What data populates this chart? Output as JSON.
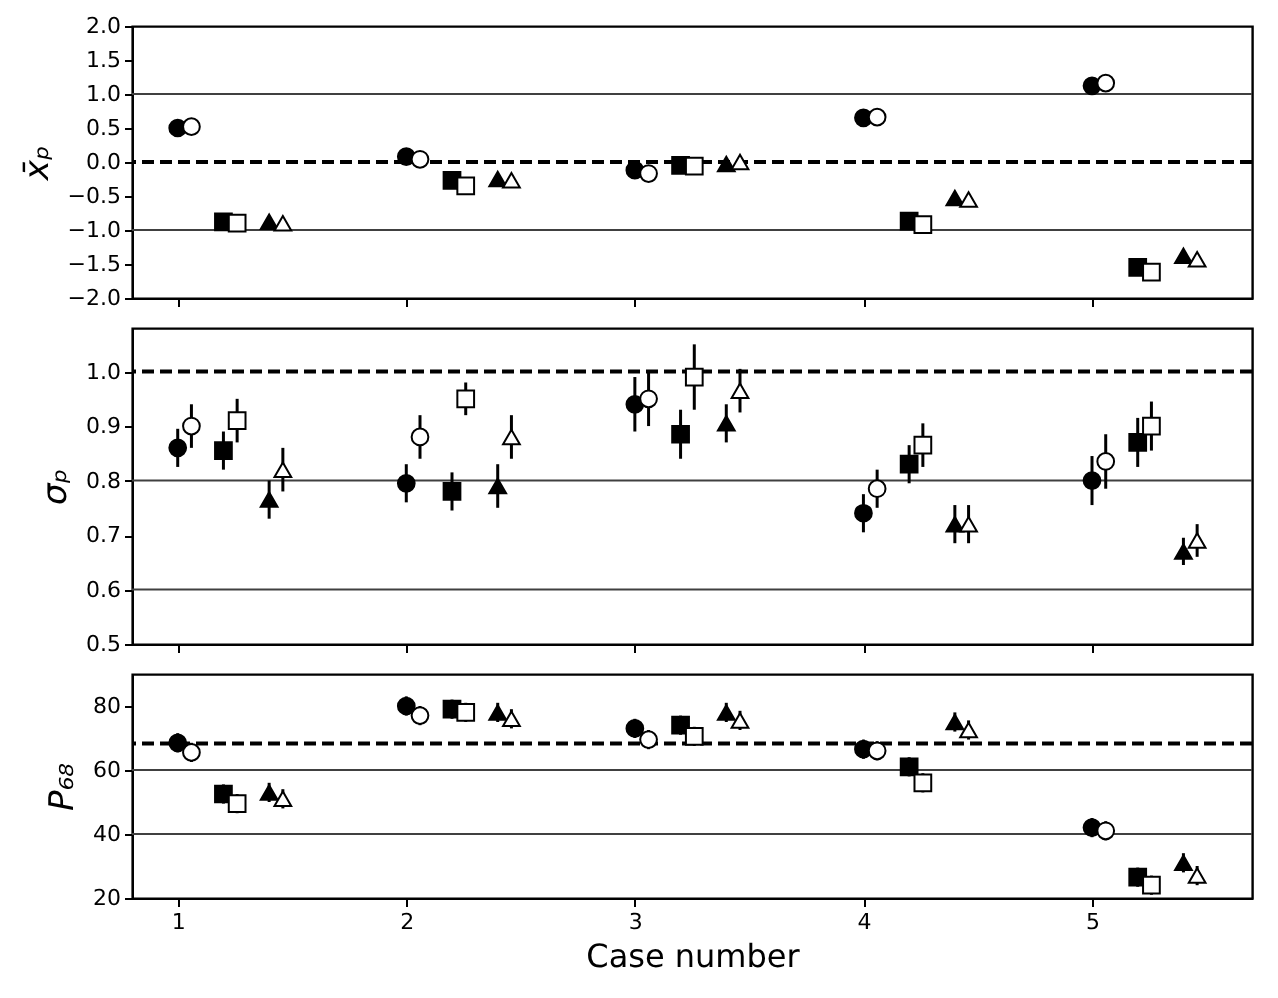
{
  "chart_data": [
    {
      "type": "scatter",
      "ylabel": "x̄ₚ",
      "xlim": [
        0.8,
        5.7
      ],
      "xticks": [
        1,
        2,
        3,
        4,
        5
      ],
      "ylim": [
        -2,
        2
      ],
      "yticks": [
        {
          "value": -2,
          "label": "−2.0"
        },
        {
          "value": -1.5,
          "label": "−1.5"
        },
        {
          "value": -1,
          "label": "−1.0"
        },
        {
          "value": -0.5,
          "label": "−0.5"
        },
        {
          "value": 0,
          "label": "0.0"
        },
        {
          "value": 0.5,
          "label": "0.5"
        },
        {
          "value": 1,
          "label": "1.0"
        },
        {
          "value": 1.5,
          "label": "1.5"
        },
        {
          "value": 2,
          "label": "2.0"
        }
      ],
      "tick_labels": "y",
      "grid": false,
      "legend": false,
      "ref_lines": [
        {
          "axis": "y",
          "value": 1,
          "color": "#404040",
          "line_style": "solid"
        },
        {
          "axis": "y",
          "value": -1,
          "color": "#404040",
          "line_style": "solid"
        },
        {
          "axis": "y",
          "value": 0,
          "color": "#000000",
          "line_style": "dashed"
        }
      ],
      "series": [
        {
          "color": "#000000",
          "marker": "circle",
          "x": [
            1,
            2,
            3,
            4,
            5
          ],
          "values": [
            0.5,
            0.08,
            -0.12,
            0.65,
            1.12
          ]
        },
        {
          "color": "#ffffff",
          "marker": "circle",
          "x": [
            1.06,
            2.06,
            3.06,
            4.06,
            5.06
          ],
          "values": [
            0.52,
            0.04,
            -0.17,
            0.66,
            1.16
          ]
        },
        {
          "color": "#000000",
          "marker": "square",
          "x": [
            1.2,
            2.2,
            3.2,
            4.2,
            5.2
          ],
          "values": [
            -0.88,
            -0.27,
            -0.05,
            -0.87,
            -1.55
          ]
        },
        {
          "color": "#ffffff",
          "marker": "square",
          "x": [
            1.26,
            2.26,
            3.26,
            4.26,
            5.26
          ],
          "values": [
            -0.9,
            -0.35,
            -0.06,
            -0.92,
            -1.62
          ]
        },
        {
          "color": "#000000",
          "marker": "triangle",
          "x": [
            1.4,
            2.4,
            3.4,
            4.4,
            5.4
          ],
          "values": [
            -0.88,
            -0.25,
            -0.03,
            -0.53,
            -1.38
          ]
        },
        {
          "color": "#ffffff",
          "marker": "triangle",
          "x": [
            1.46,
            2.46,
            3.46,
            4.46,
            5.46
          ],
          "values": [
            -0.9,
            -0.27,
            0.0,
            -0.55,
            -1.43
          ]
        }
      ]
    },
    {
      "type": "scatter",
      "ylabel": "σₚ",
      "xlim": [
        0.8,
        5.7
      ],
      "xticks": [
        1,
        2,
        3,
        4,
        5
      ],
      "ylim": [
        0.5,
        1.08
      ],
      "yticks": [
        0.5,
        0.6,
        0.7,
        0.8,
        0.9,
        {
          "value": 1,
          "label": "1.0"
        }
      ],
      "tick_labels": "y",
      "grid": false,
      "legend": false,
      "ref_lines": [
        {
          "axis": "y",
          "value": 0.8,
          "color": "#404040",
          "line_style": "solid"
        },
        {
          "axis": "y",
          "value": 0.6,
          "color": "#404040",
          "line_style": "solid"
        },
        {
          "axis": "y",
          "value": 1.0,
          "color": "#000000",
          "line_style": "dashed"
        }
      ],
      "series": [
        {
          "color": "#000000",
          "marker": "circle",
          "x": [
            1,
            2,
            3,
            4,
            5
          ],
          "values": [
            0.86,
            0.795,
            0.94,
            0.74,
            0.8
          ],
          "errors": [
            0.035,
            0.035,
            0.05,
            0.035,
            0.045
          ]
        },
        {
          "color": "#ffffff",
          "marker": "circle",
          "x": [
            1.06,
            2.06,
            3.06,
            4.06,
            5.06
          ],
          "values": [
            0.9,
            0.88,
            0.95,
            0.785,
            0.835
          ],
          "errors": [
            0.04,
            0.04,
            0.05,
            0.035,
            0.05
          ]
        },
        {
          "color": "#000000",
          "marker": "square",
          "x": [
            1.2,
            2.2,
            3.2,
            4.2,
            5.2
          ],
          "values": [
            0.855,
            0.78,
            0.885,
            0.83,
            0.87
          ],
          "errors": [
            0.035,
            0.035,
            0.045,
            0.035,
            0.045
          ]
        },
        {
          "color": "#ffffff",
          "marker": "square",
          "x": [
            1.26,
            2.26,
            3.26,
            4.26,
            5.26
          ],
          "values": [
            0.91,
            0.95,
            0.99,
            0.865,
            0.9
          ],
          "errors": [
            0.04,
            0.03,
            0.06,
            0.04,
            0.045
          ]
        },
        {
          "color": "#000000",
          "marker": "triangle",
          "x": [
            1.4,
            2.4,
            3.4,
            4.4,
            5.4
          ],
          "values": [
            0.765,
            0.79,
            0.905,
            0.72,
            0.67
          ],
          "errors": [
            0.035,
            0.04,
            0.035,
            0.035,
            0.025
          ]
        },
        {
          "color": "#ffffff",
          "marker": "triangle",
          "x": [
            1.46,
            2.46,
            3.46,
            4.46,
            5.46
          ],
          "values": [
            0.82,
            0.88,
            0.965,
            0.72,
            0.69
          ],
          "errors": [
            0.04,
            0.04,
            0.04,
            0.035,
            0.03
          ]
        }
      ]
    },
    {
      "type": "scatter",
      "xlabel": "Case number",
      "ylabel": "P₆₈",
      "xlim": [
        0.8,
        5.7
      ],
      "xticks": [
        1,
        2,
        3,
        4,
        5
      ],
      "ylim": [
        20,
        90
      ],
      "yticks": [
        20,
        40,
        60,
        80
      ],
      "grid": false,
      "legend": false,
      "ref_lines": [
        {
          "axis": "y",
          "value": 60,
          "color": "#404040",
          "line_style": "solid"
        },
        {
          "axis": "y",
          "value": 40,
          "color": "#404040",
          "line_style": "solid"
        },
        {
          "axis": "y",
          "value": 68.27,
          "color": "#000000",
          "line_style": "dashed"
        }
      ],
      "series": [
        {
          "color": "#000000",
          "marker": "circle",
          "x": [
            1,
            2,
            3,
            4,
            5
          ],
          "values": [
            68.5,
            80,
            73,
            66.5,
            42
          ],
          "errors": [
            3,
            3,
            3,
            3,
            3
          ]
        },
        {
          "color": "#ffffff",
          "marker": "circle",
          "x": [
            1.06,
            2.06,
            3.06,
            4.06,
            5.06
          ],
          "values": [
            65.5,
            77,
            69.5,
            66,
            41
          ],
          "errors": [
            3,
            3,
            3,
            3,
            3
          ]
        },
        {
          "color": "#000000",
          "marker": "square",
          "x": [
            1.2,
            2.2,
            3.2,
            4.2,
            5.2
          ],
          "values": [
            52.5,
            79,
            74,
            61,
            26.5
          ],
          "errors": [
            3,
            3,
            3,
            3,
            3
          ]
        },
        {
          "color": "#ffffff",
          "marker": "square",
          "x": [
            1.26,
            2.26,
            3.26,
            4.26,
            5.26
          ],
          "values": [
            49.5,
            78,
            70.5,
            56,
            24
          ],
          "errors": [
            3,
            3,
            3,
            3,
            3
          ]
        },
        {
          "color": "#000000",
          "marker": "triangle",
          "x": [
            1.4,
            2.4,
            3.4,
            4.4,
            5.4
          ],
          "values": [
            53,
            78,
            78,
            75,
            31
          ],
          "errors": [
            3,
            3,
            3,
            3,
            3
          ]
        },
        {
          "color": "#ffffff",
          "marker": "triangle",
          "x": [
            1.46,
            2.46,
            3.46,
            4.46,
            5.46
          ],
          "values": [
            51,
            76,
            75.5,
            72.5,
            27
          ],
          "errors": [
            3,
            3,
            3,
            3,
            3
          ]
        }
      ]
    }
  ]
}
